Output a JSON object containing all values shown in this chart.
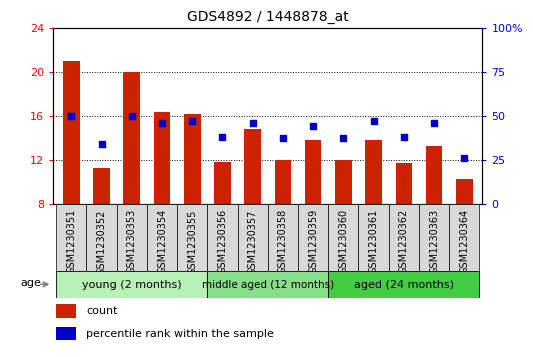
{
  "title": "GDS4892 / 1448878_at",
  "samples": [
    "GSM1230351",
    "GSM1230352",
    "GSM1230353",
    "GSM1230354",
    "GSM1230355",
    "GSM1230356",
    "GSM1230357",
    "GSM1230358",
    "GSM1230359",
    "GSM1230360",
    "GSM1230361",
    "GSM1230362",
    "GSM1230363",
    "GSM1230364"
  ],
  "counts": [
    21.0,
    11.2,
    20.0,
    16.3,
    16.1,
    11.8,
    14.8,
    12.0,
    13.8,
    12.0,
    13.8,
    11.7,
    13.2,
    10.2
  ],
  "percentiles": [
    50,
    34,
    50,
    46,
    47,
    38,
    46,
    37,
    44,
    37,
    47,
    38,
    46,
    26
  ],
  "ylim_left": [
    8,
    24
  ],
  "ylim_right": [
    0,
    100
  ],
  "yticks_left": [
    8,
    12,
    16,
    20,
    24
  ],
  "yticks_right": [
    0,
    25,
    50,
    75,
    100
  ],
  "bar_color": "#cc2200",
  "dot_color": "#0000cc",
  "bg_color": "#ffffff",
  "groups": [
    {
      "label": "young (2 months)",
      "start": 0,
      "end": 5
    },
    {
      "label": "middle aged (12 months)",
      "start": 5,
      "end": 9
    },
    {
      "label": "aged (24 months)",
      "start": 9,
      "end": 14
    }
  ],
  "group_colors": [
    "#b8f0b8",
    "#88dd88",
    "#44cc44"
  ],
  "xlabel": "age",
  "legend_count_label": "count",
  "legend_pct_label": "percentile rank within the sample",
  "title_fontsize": 10,
  "tick_fontsize": 7,
  "bar_width": 0.55,
  "right_ytick_labels": [
    "0",
    "25",
    "50",
    "75",
    "100%"
  ]
}
